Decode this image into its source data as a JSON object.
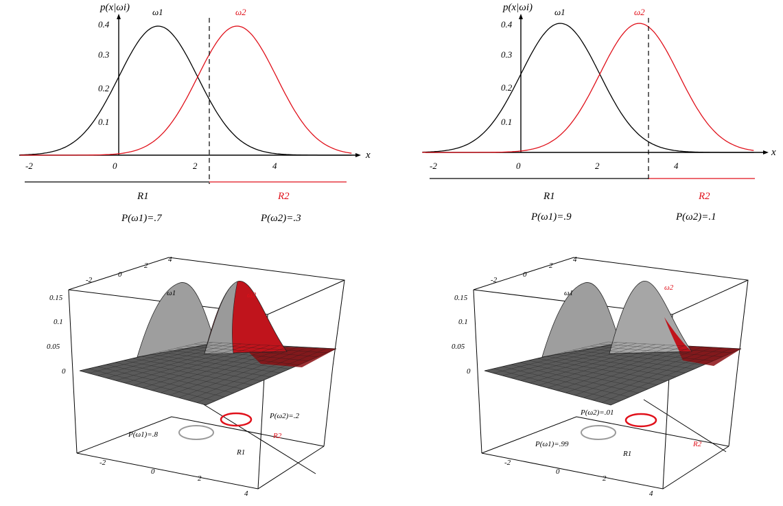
{
  "colors": {
    "class1": "#000000",
    "class2": "#e0101a",
    "surface_gray": "#9a9a9a",
    "surface_red": "#c0141c"
  },
  "chart_data": [
    {
      "type": "line",
      "title": "",
      "ylabel": "p(x|ωi)",
      "xlabel": "x",
      "xlim": [
        -2,
        6
      ],
      "ylim": [
        0,
        0.4
      ],
      "x_ticks": [
        "-2",
        "0",
        "2",
        "4"
      ],
      "y_ticks": [
        "0.1",
        "0.2",
        "0.3",
        "0.4"
      ],
      "series": [
        {
          "name": "ω1",
          "mean": 1,
          "sd": 1,
          "peak": 0.4
        },
        {
          "name": "ω2",
          "mean": 3,
          "sd": 1,
          "peak": 0.4
        }
      ],
      "decision_boundary": 2.4,
      "regions": [
        {
          "label": "R1",
          "prior": "P(ω1)=.7"
        },
        {
          "label": "R2",
          "prior": "P(ω2)=.3"
        }
      ]
    },
    {
      "type": "line",
      "title": "",
      "ylabel": "p(x|ωi)",
      "xlabel": "x",
      "xlim": [
        -2,
        6
      ],
      "ylim": [
        0,
        0.4
      ],
      "x_ticks": [
        "-2",
        "0",
        "2",
        "4"
      ],
      "y_ticks": [
        "0.1",
        "0.2",
        "0.3",
        "0.4"
      ],
      "series": [
        {
          "name": "ω1",
          "mean": 1,
          "sd": 1,
          "peak": 0.4
        },
        {
          "name": "ω2",
          "mean": 3,
          "sd": 1,
          "peak": 0.4
        }
      ],
      "decision_boundary": 3.1,
      "regions": [
        {
          "label": "R1",
          "prior": "P(ω1)=.9"
        },
        {
          "label": "R2",
          "prior": "P(ω2)=.1"
        }
      ]
    },
    {
      "type": "surface",
      "z_ticks": [
        "0",
        "0.05",
        "0.1",
        "0.15"
      ],
      "x_ticks": [
        "-2",
        "0",
        "2",
        "4"
      ],
      "y_ticks": [
        "-2",
        "0",
        "2",
        "4"
      ],
      "labels": {
        "w1": "ω1",
        "w2": "ω2",
        "r1": "R1",
        "r2": "R2",
        "p1": "P(ω1)=.8",
        "p2": "P(ω2)=.2"
      }
    },
    {
      "type": "surface",
      "z_ticks": [
        "0",
        "0.05",
        "0.1",
        "0.15"
      ],
      "x_ticks": [
        "-2",
        "0",
        "2",
        "4"
      ],
      "y_ticks": [
        "-2",
        "0",
        "2",
        "4"
      ],
      "labels": {
        "w1": "ω1",
        "w2": "ω2",
        "r1": "R1",
        "r2": "R2",
        "p1": "P(ω1)=.99",
        "p2": "P(ω2)=.01"
      }
    }
  ]
}
